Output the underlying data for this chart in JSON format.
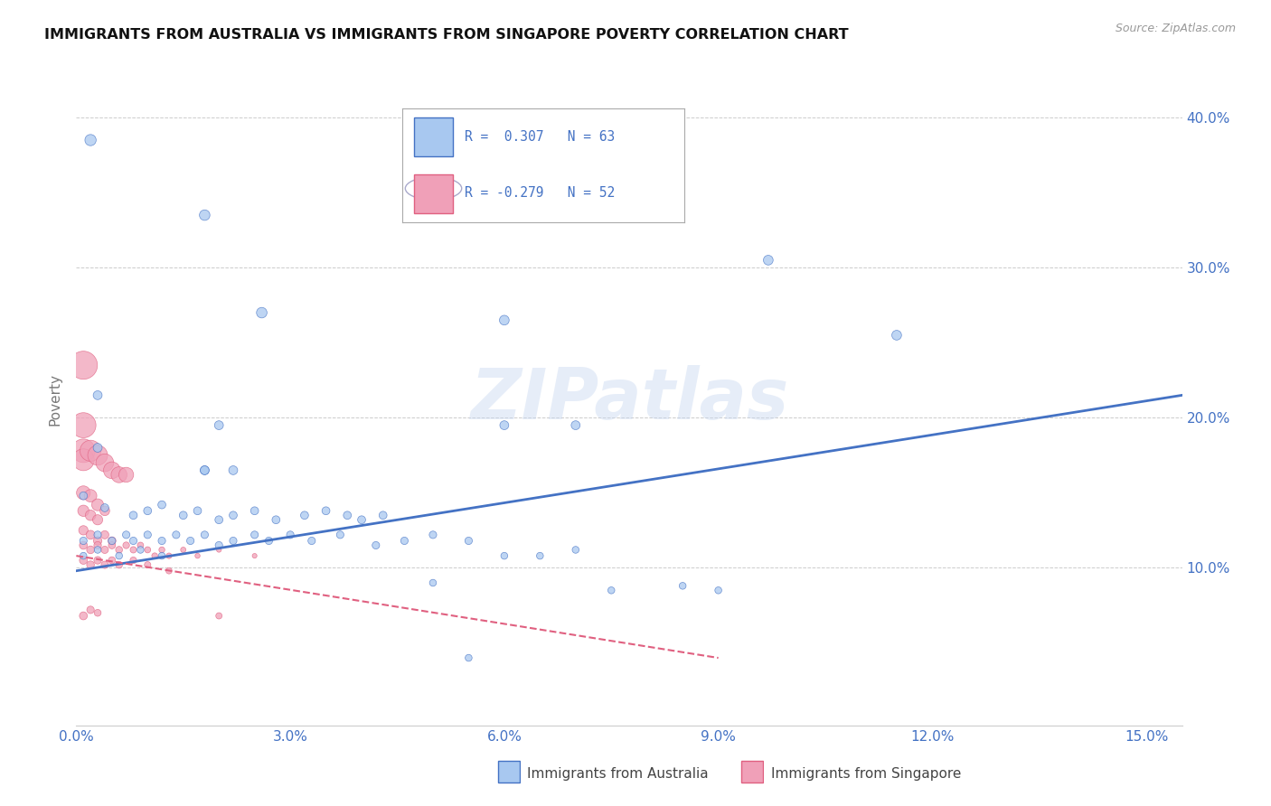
{
  "title": "IMMIGRANTS FROM AUSTRALIA VS IMMIGRANTS FROM SINGAPORE POVERTY CORRELATION CHART",
  "source": "Source: ZipAtlas.com",
  "ylabel": "Poverty",
  "ytick_labels": [
    "10.0%",
    "20.0%",
    "30.0%",
    "40.0%"
  ],
  "ytick_values": [
    0.1,
    0.2,
    0.3,
    0.4
  ],
  "xtick_labels": [
    "0.0%",
    "3.0%",
    "6.0%",
    "9.0%",
    "12.0%",
    "15.0%"
  ],
  "xtick_values": [
    0.0,
    0.03,
    0.06,
    0.09,
    0.12,
    0.15
  ],
  "xlim": [
    0.0,
    0.155
  ],
  "ylim": [
    -0.005,
    0.43
  ],
  "watermark": "ZIPatlas",
  "color_australia": "#A8C8F0",
  "color_singapore": "#F0A0B8",
  "trendline_australia_color": "#4472C4",
  "trendline_singapore_color": "#E06080",
  "aus_trend_x": [
    0.0,
    0.155
  ],
  "aus_trend_y": [
    0.098,
    0.215
  ],
  "sin_trend_x": [
    0.0,
    0.09
  ],
  "sin_trend_y": [
    0.108,
    0.04
  ],
  "australia_scatter": [
    [
      0.002,
      0.385
    ],
    [
      0.018,
      0.335
    ],
    [
      0.026,
      0.27
    ],
    [
      0.06,
      0.265
    ],
    [
      0.097,
      0.305
    ],
    [
      0.115,
      0.255
    ],
    [
      0.07,
      0.195
    ],
    [
      0.06,
      0.195
    ],
    [
      0.003,
      0.215
    ],
    [
      0.018,
      0.165
    ],
    [
      0.022,
      0.165
    ],
    [
      0.003,
      0.18
    ],
    [
      0.018,
      0.165
    ],
    [
      0.02,
      0.195
    ],
    [
      0.001,
      0.148
    ],
    [
      0.004,
      0.14
    ],
    [
      0.008,
      0.135
    ],
    [
      0.01,
      0.138
    ],
    [
      0.012,
      0.142
    ],
    [
      0.015,
      0.135
    ],
    [
      0.017,
      0.138
    ],
    [
      0.02,
      0.132
    ],
    [
      0.022,
      0.135
    ],
    [
      0.025,
      0.138
    ],
    [
      0.028,
      0.132
    ],
    [
      0.032,
      0.135
    ],
    [
      0.035,
      0.138
    ],
    [
      0.038,
      0.135
    ],
    [
      0.04,
      0.132
    ],
    [
      0.043,
      0.135
    ],
    [
      0.001,
      0.118
    ],
    [
      0.003,
      0.122
    ],
    [
      0.005,
      0.118
    ],
    [
      0.007,
      0.122
    ],
    [
      0.008,
      0.118
    ],
    [
      0.01,
      0.122
    ],
    [
      0.012,
      0.118
    ],
    [
      0.014,
      0.122
    ],
    [
      0.016,
      0.118
    ],
    [
      0.018,
      0.122
    ],
    [
      0.02,
      0.115
    ],
    [
      0.022,
      0.118
    ],
    [
      0.025,
      0.122
    ],
    [
      0.027,
      0.118
    ],
    [
      0.03,
      0.122
    ],
    [
      0.033,
      0.118
    ],
    [
      0.037,
      0.122
    ],
    [
      0.042,
      0.115
    ],
    [
      0.046,
      0.118
    ],
    [
      0.05,
      0.122
    ],
    [
      0.055,
      0.118
    ],
    [
      0.001,
      0.108
    ],
    [
      0.003,
      0.112
    ],
    [
      0.006,
      0.108
    ],
    [
      0.009,
      0.112
    ],
    [
      0.012,
      0.108
    ],
    [
      0.06,
      0.108
    ],
    [
      0.065,
      0.108
    ],
    [
      0.07,
      0.112
    ],
    [
      0.075,
      0.085
    ],
    [
      0.085,
      0.088
    ],
    [
      0.09,
      0.085
    ],
    [
      0.05,
      0.09
    ],
    [
      0.055,
      0.04
    ]
  ],
  "australia_sizes": [
    80,
    70,
    70,
    60,
    60,
    60,
    50,
    50,
    50,
    50,
    50,
    50,
    50,
    50,
    40,
    40,
    40,
    40,
    40,
    40,
    40,
    40,
    40,
    40,
    40,
    40,
    40,
    40,
    40,
    40,
    35,
    35,
    35,
    35,
    35,
    35,
    35,
    35,
    35,
    35,
    35,
    35,
    35,
    35,
    35,
    35,
    35,
    35,
    35,
    35,
    35,
    30,
    30,
    30,
    30,
    30,
    30,
    30,
    30,
    30,
    30,
    30,
    30,
    30
  ],
  "singapore_scatter": [
    [
      0.001,
      0.235
    ],
    [
      0.001,
      0.195
    ],
    [
      0.001,
      0.178
    ],
    [
      0.001,
      0.172
    ],
    [
      0.002,
      0.178
    ],
    [
      0.003,
      0.175
    ],
    [
      0.004,
      0.17
    ],
    [
      0.005,
      0.165
    ],
    [
      0.006,
      0.162
    ],
    [
      0.007,
      0.162
    ],
    [
      0.001,
      0.15
    ],
    [
      0.002,
      0.148
    ],
    [
      0.003,
      0.142
    ],
    [
      0.001,
      0.138
    ],
    [
      0.002,
      0.135
    ],
    [
      0.003,
      0.132
    ],
    [
      0.004,
      0.138
    ],
    [
      0.001,
      0.125
    ],
    [
      0.002,
      0.122
    ],
    [
      0.003,
      0.118
    ],
    [
      0.004,
      0.122
    ],
    [
      0.005,
      0.118
    ],
    [
      0.001,
      0.115
    ],
    [
      0.002,
      0.112
    ],
    [
      0.003,
      0.115
    ],
    [
      0.004,
      0.112
    ],
    [
      0.005,
      0.115
    ],
    [
      0.006,
      0.112
    ],
    [
      0.007,
      0.115
    ],
    [
      0.008,
      0.112
    ],
    [
      0.009,
      0.115
    ],
    [
      0.01,
      0.112
    ],
    [
      0.011,
      0.108
    ],
    [
      0.012,
      0.112
    ],
    [
      0.013,
      0.108
    ],
    [
      0.015,
      0.112
    ],
    [
      0.017,
      0.108
    ],
    [
      0.02,
      0.112
    ],
    [
      0.025,
      0.108
    ],
    [
      0.001,
      0.105
    ],
    [
      0.002,
      0.102
    ],
    [
      0.003,
      0.105
    ],
    [
      0.004,
      0.102
    ],
    [
      0.005,
      0.105
    ],
    [
      0.006,
      0.102
    ],
    [
      0.008,
      0.105
    ],
    [
      0.01,
      0.102
    ],
    [
      0.013,
      0.098
    ],
    [
      0.001,
      0.068
    ],
    [
      0.002,
      0.072
    ],
    [
      0.003,
      0.07
    ],
    [
      0.02,
      0.068
    ]
  ],
  "singapore_sizes": [
    500,
    400,
    350,
    300,
    280,
    250,
    200,
    180,
    160,
    140,
    120,
    100,
    90,
    80,
    70,
    65,
    60,
    55,
    50,
    45,
    42,
    40,
    40,
    38,
    36,
    34,
    32,
    30,
    28,
    26,
    25,
    24,
    22,
    22,
    20,
    18,
    16,
    15,
    14,
    40,
    38,
    36,
    34,
    32,
    30,
    28,
    26,
    24,
    40,
    35,
    30,
    25
  ]
}
